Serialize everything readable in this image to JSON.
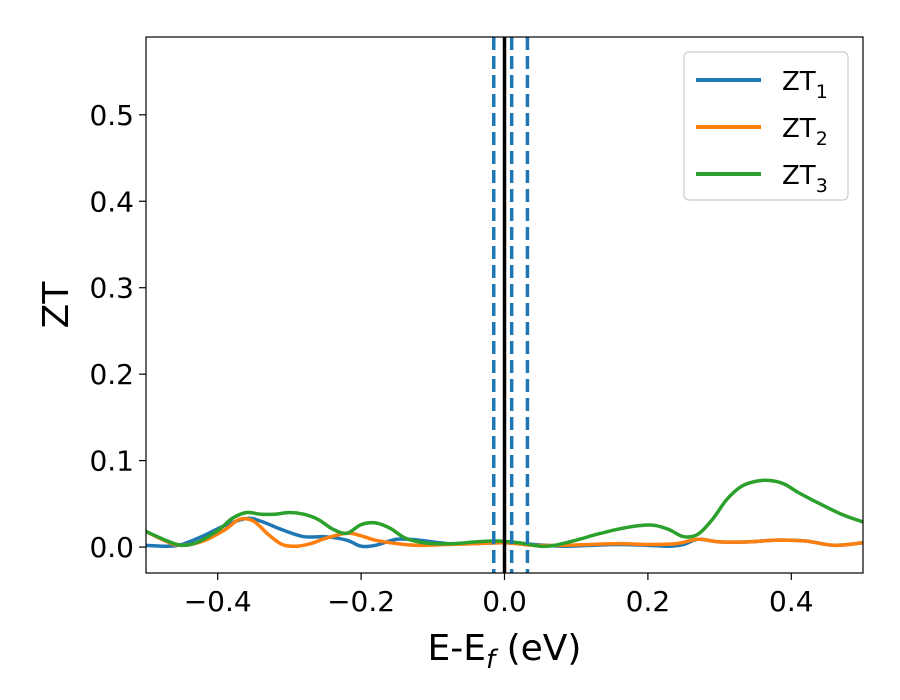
{
  "chart_data": {
    "type": "line",
    "xlabel_main": "E-E",
    "xlabel_sub": "f",
    "xlabel_unit": " (eV)",
    "ylabel": "ZT",
    "xlim": [
      -0.5,
      0.5
    ],
    "ylim": [
      -0.03,
      0.59
    ],
    "xticks": [
      {
        "value": -0.4,
        "label": "−0.4"
      },
      {
        "value": -0.2,
        "label": "−0.2"
      },
      {
        "value": 0.0,
        "label": "0.0"
      },
      {
        "value": 0.2,
        "label": "0.2"
      },
      {
        "value": 0.4,
        "label": "0.4"
      }
    ],
    "yticks": [
      {
        "value": 0.0,
        "label": "0.0"
      },
      {
        "value": 0.1,
        "label": "0.1"
      },
      {
        "value": 0.2,
        "label": "0.2"
      },
      {
        "value": 0.3,
        "label": "0.3"
      },
      {
        "value": 0.4,
        "label": "0.4"
      },
      {
        "value": 0.5,
        "label": "0.5"
      }
    ],
    "grid": false,
    "legend_position": "top-right",
    "vlines": [
      {
        "x": 0.0,
        "style": "solid",
        "color": "#000000"
      },
      {
        "x": -0.015,
        "style": "dashed",
        "color": "#1f77b4"
      },
      {
        "x": 0.01,
        "style": "dashed",
        "color": "#1f77b4"
      },
      {
        "x": 0.032,
        "style": "dashed",
        "color": "#1f77b4"
      }
    ],
    "series": [
      {
        "name": "ZT",
        "subscript": "1",
        "color": "#1f77b4",
        "x": [
          -0.5,
          -0.47,
          -0.45,
          -0.42,
          -0.39,
          -0.36,
          -0.34,
          -0.31,
          -0.28,
          -0.25,
          -0.22,
          -0.2,
          -0.18,
          -0.15,
          -0.12,
          -0.08,
          -0.04,
          0.0,
          0.04,
          0.08,
          0.12,
          0.16,
          0.2,
          0.23,
          0.25,
          0.27,
          0.3,
          0.34,
          0.38,
          0.42,
          0.46,
          0.5
        ],
        "y": [
          0.002,
          0.001,
          0.003,
          0.013,
          0.025,
          0.033,
          0.03,
          0.02,
          0.012,
          0.012,
          0.008,
          0.001,
          0.002,
          0.009,
          0.008,
          0.004,
          0.004,
          0.005,
          0.003,
          0.001,
          0.002,
          0.003,
          0.002,
          0.001,
          0.003,
          0.009,
          0.006,
          0.006,
          0.008,
          0.007,
          0.002,
          0.005
        ]
      },
      {
        "name": "ZT",
        "subscript": "2",
        "color": "#ff7f0e",
        "x": [
          -0.5,
          -0.47,
          -0.45,
          -0.42,
          -0.39,
          -0.37,
          -0.35,
          -0.33,
          -0.31,
          -0.29,
          -0.27,
          -0.25,
          -0.22,
          -0.2,
          -0.18,
          -0.15,
          -0.12,
          -0.08,
          -0.04,
          0.0,
          0.04,
          0.08,
          0.12,
          0.16,
          0.2,
          0.24,
          0.27,
          0.3,
          0.34,
          0.38,
          0.42,
          0.46,
          0.5
        ],
        "y": [
          0.018,
          0.006,
          0.002,
          0.007,
          0.02,
          0.032,
          0.03,
          0.015,
          0.003,
          0.001,
          0.004,
          0.01,
          0.016,
          0.013,
          0.008,
          0.004,
          0.002,
          0.003,
          0.004,
          0.005,
          0.002,
          0.002,
          0.003,
          0.004,
          0.003,
          0.004,
          0.009,
          0.006,
          0.006,
          0.008,
          0.007,
          0.002,
          0.005
        ]
      },
      {
        "name": "ZT",
        "subscript": "3",
        "color": "#2ca02c",
        "x": [
          -0.5,
          -0.47,
          -0.45,
          -0.43,
          -0.4,
          -0.38,
          -0.36,
          -0.34,
          -0.32,
          -0.3,
          -0.28,
          -0.26,
          -0.24,
          -0.22,
          -0.2,
          -0.18,
          -0.16,
          -0.14,
          -0.12,
          -0.1,
          -0.07,
          -0.04,
          -0.01,
          0.02,
          0.05,
          0.07,
          0.1,
          0.13,
          0.16,
          0.19,
          0.21,
          0.23,
          0.25,
          0.27,
          0.29,
          0.31,
          0.33,
          0.35,
          0.37,
          0.39,
          0.41,
          0.44,
          0.47,
          0.5
        ],
        "y": [
          0.018,
          0.007,
          0.002,
          0.005,
          0.019,
          0.033,
          0.04,
          0.038,
          0.038,
          0.04,
          0.038,
          0.032,
          0.021,
          0.016,
          0.026,
          0.028,
          0.022,
          0.011,
          0.006,
          0.004,
          0.004,
          0.006,
          0.007,
          0.005,
          0.001,
          0.002,
          0.008,
          0.015,
          0.021,
          0.025,
          0.025,
          0.02,
          0.012,
          0.015,
          0.032,
          0.055,
          0.07,
          0.076,
          0.077,
          0.073,
          0.063,
          0.05,
          0.038,
          0.029
        ]
      }
    ]
  }
}
